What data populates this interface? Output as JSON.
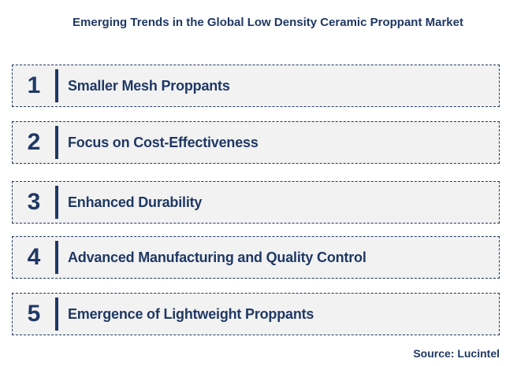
{
  "title": "Emerging Trends in the Global Low Density Ceramic Proppant Market",
  "items": [
    {
      "number": "1",
      "label": "Smaller Mesh Proppants"
    },
    {
      "number": "2",
      "label": "Focus on Cost-Effectiveness"
    },
    {
      "number": "3",
      "label": "Enhanced Durability"
    },
    {
      "number": "4",
      "label": "Advanced Manufacturing and Quality Control"
    },
    {
      "number": "5",
      "label": "Emergence of Lightweight Proppants"
    }
  ],
  "source": "Source: Lucintel",
  "colors": {
    "primary": "#1f3864",
    "box_fill": "#f2f2f2"
  }
}
